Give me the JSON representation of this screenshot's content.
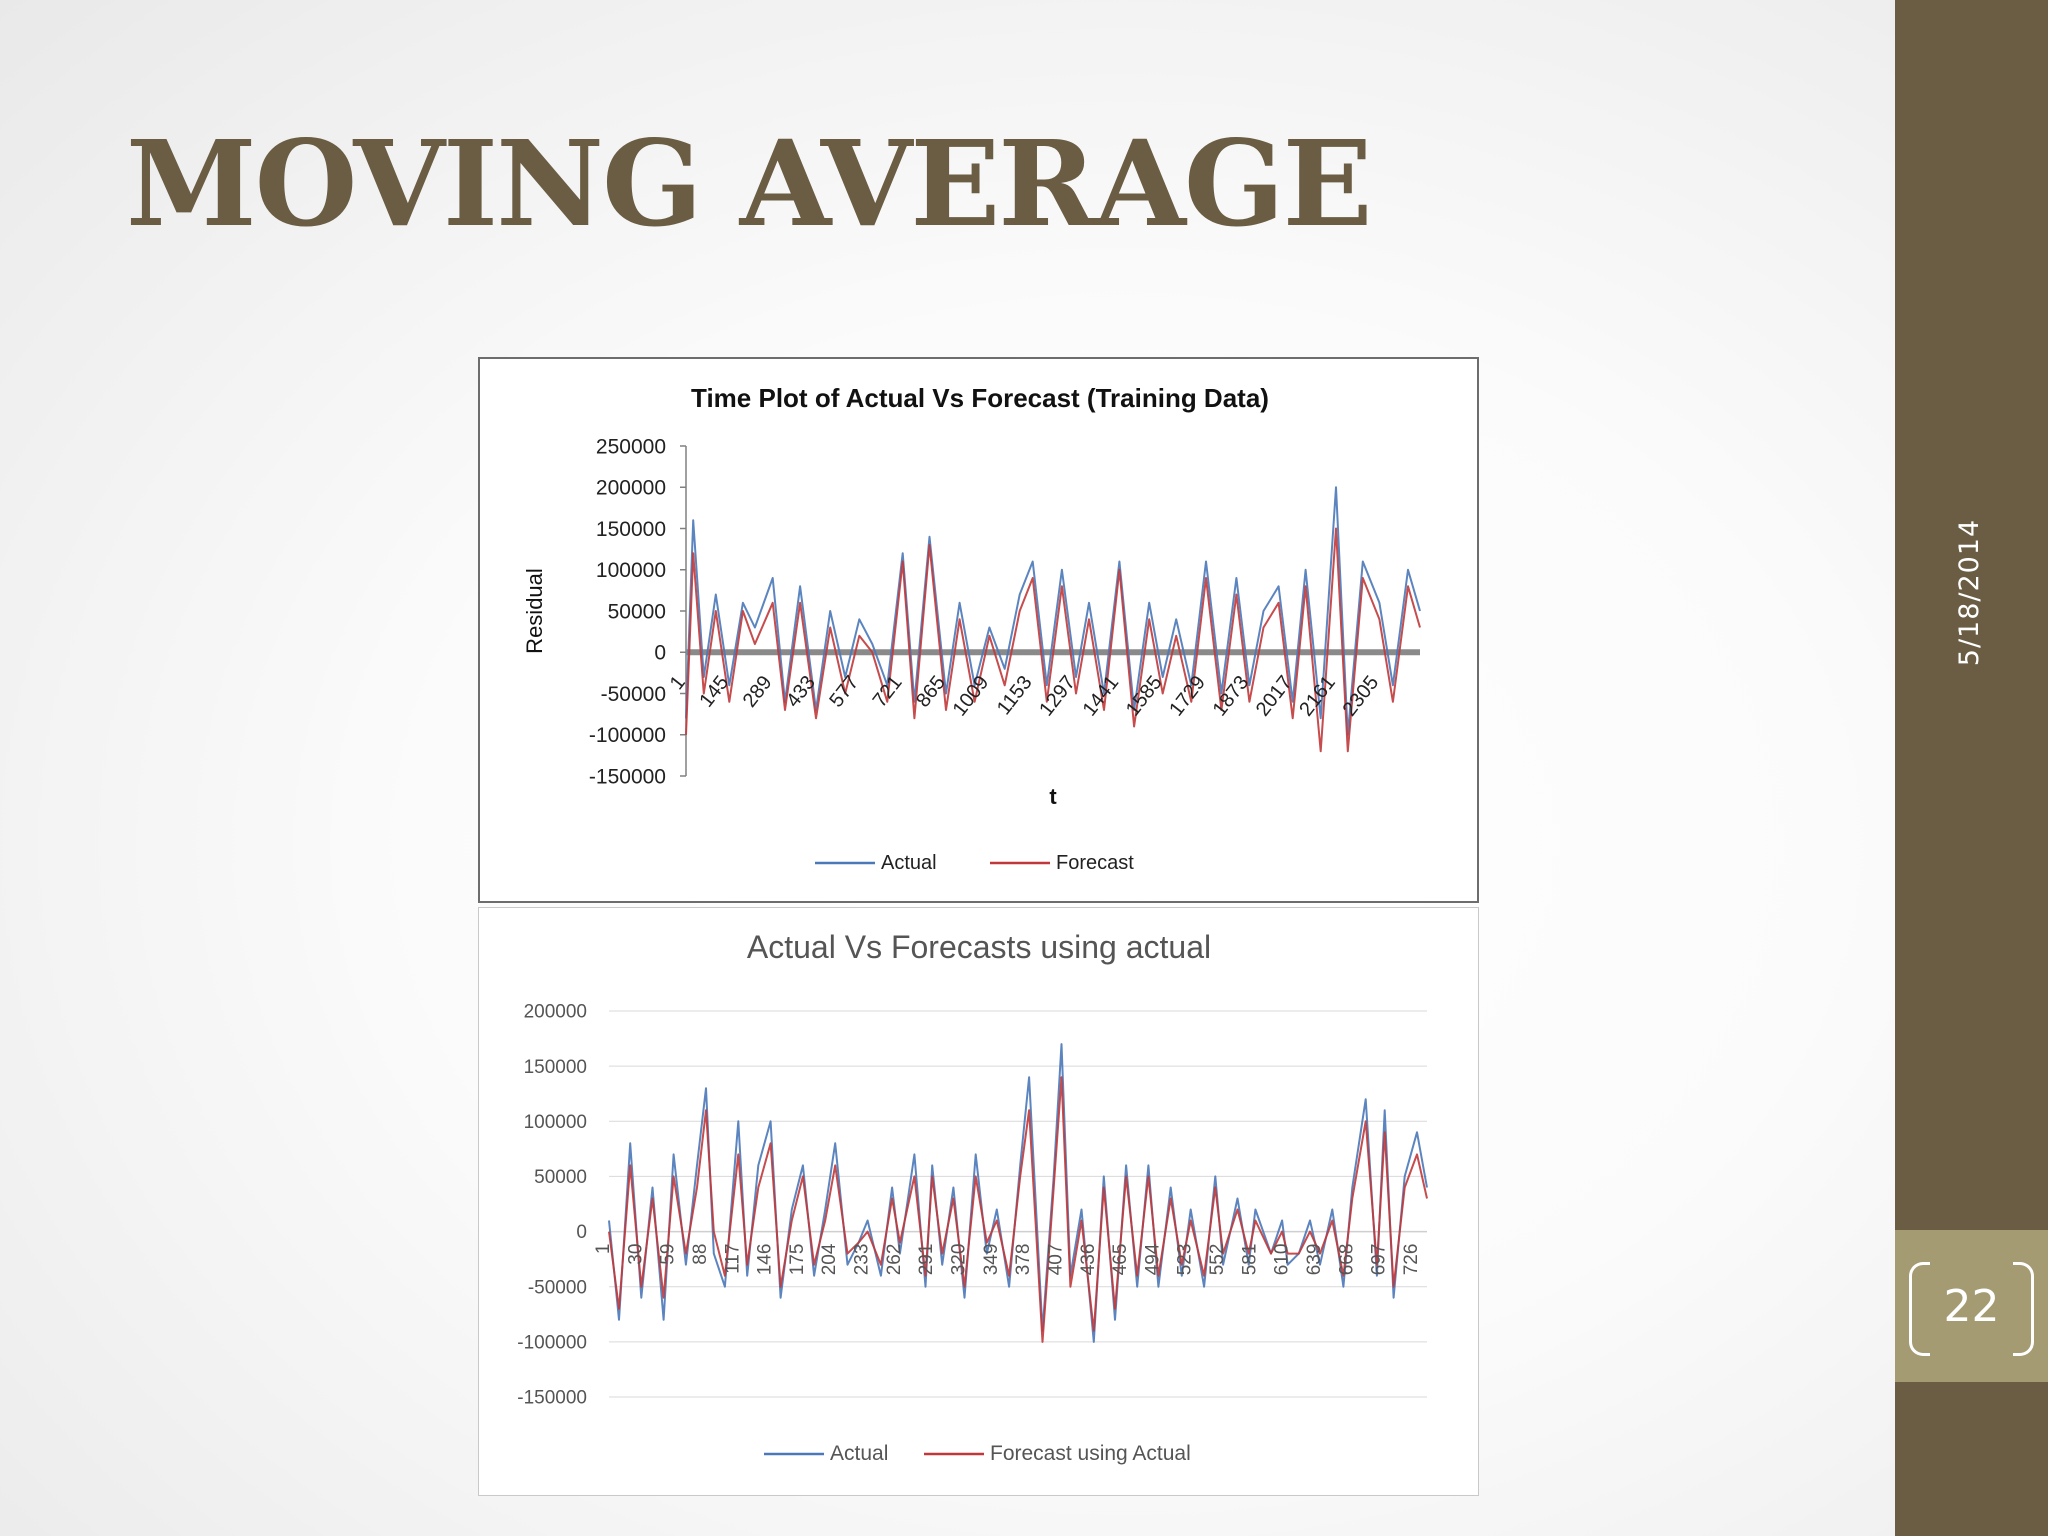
{
  "slide": {
    "title": "MOVING AVERAGE",
    "date": "5/18/2014",
    "page_number": "22"
  },
  "colors": {
    "accent": "#6a5d43",
    "page_box": "#a59b72",
    "actual_line": "#4a78b8",
    "forecast_line": "#c0383a"
  },
  "chart_data": [
    {
      "type": "line",
      "title": "Time Plot of Actual Vs Forecast (Training Data)",
      "xlabel": "t",
      "ylabel": "Residual",
      "ylim": [
        -150000,
        250000
      ],
      "yticks": [
        -150000,
        -100000,
        -50000,
        0,
        50000,
        100000,
        150000,
        200000,
        250000
      ],
      "yticklabels": [
        "-150000",
        "-100000",
        "-50000",
        "0",
        "50000",
        "100000",
        "150000",
        "200000",
        "250000"
      ],
      "xlim": [
        1,
        2440
      ],
      "xticks": [
        1,
        145,
        289,
        433,
        577,
        721,
        865,
        1009,
        1153,
        1297,
        1441,
        1585,
        1729,
        1873,
        2017,
        2161,
        2305
      ],
      "grid": false,
      "legend": "bottom",
      "series": [
        {
          "name": "Actual",
          "x": [
            1,
            25,
            60,
            100,
            145,
            190,
            230,
            289,
            330,
            380,
            433,
            480,
            530,
            577,
            620,
            670,
            721,
            760,
            810,
            865,
            910,
            960,
            1009,
            1060,
            1110,
            1153,
            1200,
            1250,
            1297,
            1340,
            1390,
            1441,
            1490,
            1540,
            1585,
            1630,
            1680,
            1729,
            1780,
            1830,
            1873,
            1920,
            1970,
            2017,
            2060,
            2110,
            2161,
            2200,
            2250,
            2305,
            2350,
            2400,
            2440
          ],
          "values": [
            -80000,
            160000,
            -30000,
            70000,
            -40000,
            60000,
            30000,
            90000,
            -60000,
            80000,
            -70000,
            50000,
            -30000,
            40000,
            10000,
            -40000,
            120000,
            -60000,
            140000,
            -50000,
            60000,
            -40000,
            30000,
            -20000,
            70000,
            110000,
            -40000,
            100000,
            -30000,
            60000,
            -50000,
            110000,
            -70000,
            60000,
            -30000,
            40000,
            -40000,
            110000,
            -50000,
            90000,
            -40000,
            50000,
            80000,
            -60000,
            100000,
            -80000,
            200000,
            -100000,
            110000,
            60000,
            -40000,
            100000,
            50000
          ]
        },
        {
          "name": "Forecast",
          "x": [
            1,
            25,
            60,
            100,
            145,
            190,
            230,
            289,
            330,
            380,
            433,
            480,
            530,
            577,
            620,
            670,
            721,
            760,
            810,
            865,
            910,
            960,
            1009,
            1060,
            1110,
            1153,
            1200,
            1250,
            1297,
            1340,
            1390,
            1441,
            1490,
            1540,
            1585,
            1630,
            1680,
            1729,
            1780,
            1830,
            1873,
            1920,
            1970,
            2017,
            2060,
            2110,
            2161,
            2200,
            2250,
            2305,
            2350,
            2400,
            2440
          ],
          "values": [
            -100000,
            120000,
            -50000,
            50000,
            -60000,
            50000,
            10000,
            60000,
            -70000,
            60000,
            -80000,
            30000,
            -50000,
            20000,
            0,
            -60000,
            110000,
            -80000,
            130000,
            -70000,
            40000,
            -60000,
            20000,
            -40000,
            50000,
            90000,
            -60000,
            80000,
            -50000,
            40000,
            -70000,
            100000,
            -90000,
            40000,
            -50000,
            20000,
            -60000,
            90000,
            -70000,
            70000,
            -60000,
            30000,
            60000,
            -80000,
            80000,
            -120000,
            150000,
            -120000,
            90000,
            40000,
            -60000,
            80000,
            30000
          ]
        }
      ]
    },
    {
      "type": "line",
      "title": "Actual Vs Forecasts using actual",
      "xlabel": "",
      "ylabel": "",
      "ylim": [
        -150000,
        200000
      ],
      "yticks": [
        -150000,
        -100000,
        -50000,
        0,
        50000,
        100000,
        150000,
        200000
      ],
      "yticklabels": [
        "-150000",
        "-100000",
        "-50000",
        "0",
        "50000",
        "100000",
        "150000",
        "200000"
      ],
      "xlim": [
        1,
        735
      ],
      "xticks": [
        1,
        30,
        59,
        88,
        117,
        146,
        175,
        204,
        233,
        262,
        291,
        320,
        349,
        378,
        407,
        436,
        465,
        494,
        523,
        552,
        581,
        610,
        639,
        668,
        697,
        726
      ],
      "grid": true,
      "legend": "bottom",
      "series": [
        {
          "name": "Actual",
          "x": [
            1,
            10,
            20,
            30,
            40,
            50,
            59,
            70,
            80,
            88,
            95,
            105,
            117,
            125,
            135,
            146,
            155,
            165,
            175,
            185,
            195,
            204,
            215,
            225,
            233,
            245,
            255,
            262,
            275,
            285,
            291,
            300,
            310,
            320,
            330,
            340,
            349,
            360,
            370,
            378,
            390,
            400,
            407,
            415,
            425,
            436,
            445,
            455,
            465,
            475,
            485,
            494,
            505,
            515,
            523,
            535,
            545,
            552,
            565,
            575,
            581,
            595,
            605,
            610,
            620,
            630,
            639,
            650,
            660,
            668,
            680,
            690,
            697,
            705,
            715,
            726,
            735
          ],
          "values": [
            10000,
            -80000,
            80000,
            -60000,
            40000,
            -80000,
            70000,
            -30000,
            60000,
            130000,
            -20000,
            -50000,
            100000,
            -40000,
            60000,
            100000,
            -60000,
            20000,
            60000,
            -40000,
            20000,
            80000,
            -30000,
            -10000,
            10000,
            -40000,
            40000,
            -20000,
            70000,
            -50000,
            60000,
            -30000,
            40000,
            -60000,
            70000,
            -20000,
            20000,
            -50000,
            60000,
            140000,
            -90000,
            50000,
            170000,
            -40000,
            20000,
            -100000,
            50000,
            -80000,
            60000,
            -50000,
            60000,
            -50000,
            40000,
            -40000,
            20000,
            -50000,
            50000,
            -30000,
            30000,
            -30000,
            20000,
            -20000,
            10000,
            -30000,
            -20000,
            10000,
            -30000,
            20000,
            -50000,
            40000,
            120000,
            -40000,
            110000,
            -60000,
            50000,
            90000,
            40000
          ]
        },
        {
          "name": "Forecast using Actual",
          "x": [
            1,
            10,
            20,
            30,
            40,
            50,
            59,
            70,
            80,
            88,
            95,
            105,
            117,
            125,
            135,
            146,
            155,
            165,
            175,
            185,
            195,
            204,
            215,
            225,
            233,
            245,
            255,
            262,
            275,
            285,
            291,
            300,
            310,
            320,
            330,
            340,
            349,
            360,
            370,
            378,
            390,
            400,
            407,
            415,
            425,
            436,
            445,
            455,
            465,
            475,
            485,
            494,
            505,
            515,
            523,
            535,
            545,
            552,
            565,
            575,
            581,
            595,
            605,
            610,
            620,
            630,
            639,
            650,
            660,
            668,
            680,
            690,
            697,
            705,
            715,
            726,
            735
          ],
          "values": [
            0,
            -70000,
            60000,
            -50000,
            30000,
            -60000,
            50000,
            -20000,
            40000,
            110000,
            0,
            -40000,
            70000,
            -30000,
            40000,
            80000,
            -50000,
            10000,
            50000,
            -30000,
            10000,
            60000,
            -20000,
            -10000,
            0,
            -30000,
            30000,
            -10000,
            50000,
            -40000,
            50000,
            -20000,
            30000,
            -50000,
            50000,
            -10000,
            10000,
            -40000,
            50000,
            110000,
            -100000,
            40000,
            140000,
            -50000,
            10000,
            -90000,
            40000,
            -70000,
            50000,
            -40000,
            50000,
            -40000,
            30000,
            -30000,
            10000,
            -40000,
            40000,
            -20000,
            20000,
            -20000,
            10000,
            -20000,
            0,
            -20000,
            -20000,
            0,
            -20000,
            10000,
            -40000,
            30000,
            100000,
            -30000,
            90000,
            -50000,
            40000,
            70000,
            30000
          ]
        }
      ]
    }
  ]
}
